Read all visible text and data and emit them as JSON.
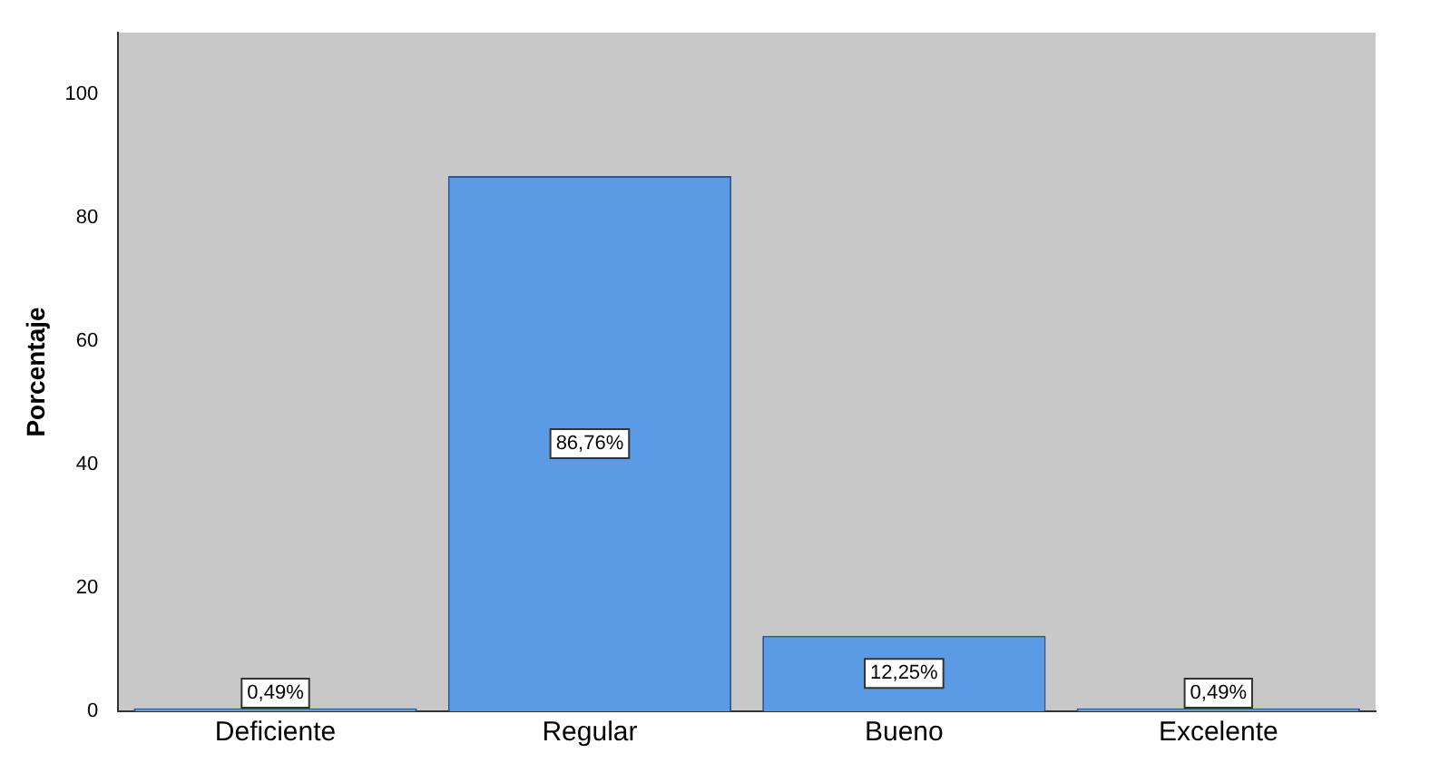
{
  "chart_data": {
    "type": "bar",
    "ylabel": "Porcentaje",
    "categories": [
      "Deficiente",
      "Regular",
      "Bueno",
      "Excelente"
    ],
    "values": [
      0.49,
      86.76,
      12.25,
      0.49
    ],
    "value_labels": [
      "0,49%",
      "86,76%",
      "12,25%",
      "0,49%"
    ],
    "color": "#5b9be6",
    "ylim": [
      0,
      110
    ],
    "yticks": [
      0,
      20,
      40,
      60,
      80,
      100
    ],
    "grid": false,
    "legend": false
  }
}
